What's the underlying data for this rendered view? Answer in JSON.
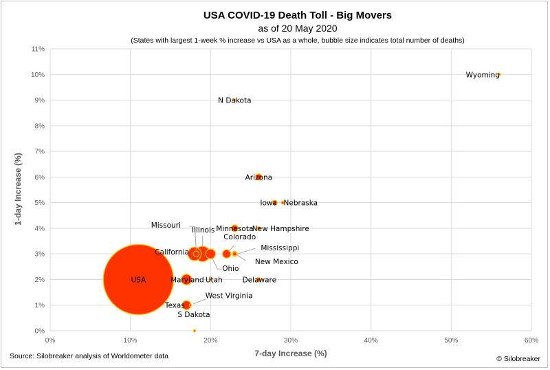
{
  "chart_data": {
    "type": "scatter",
    "title": "USA COVID-19 Death Toll - Big Movers",
    "subtitle": "as of 20 May 2020",
    "note": "(States with largest 1-week % increase vs USA as a whole, bubble size indicates total number of deaths)",
    "xlabel": "7-day Increase (%)",
    "ylabel": "1-day Increase (%)",
    "xlim": [
      0,
      60
    ],
    "ylim": [
      0,
      11
    ],
    "x_ticks": [
      0,
      10,
      20,
      30,
      40,
      50,
      60
    ],
    "y_ticks": [
      0,
      1,
      2,
      3,
      4,
      5,
      6,
      7,
      8,
      9,
      10,
      11
    ],
    "x_tick_labels": [
      "0%",
      "10%",
      "20%",
      "30%",
      "40%",
      "50%",
      "60%"
    ],
    "y_tick_labels": [
      "0%",
      "1%",
      "2%",
      "3%",
      "4%",
      "5%",
      "6%",
      "7%",
      "8%",
      "9%",
      "10%",
      "11%"
    ],
    "grid": true,
    "bubble_fill": "#ff3300",
    "bubble_stroke": "#ffc000",
    "points": [
      {
        "label": "USA",
        "x": 11,
        "y": 2,
        "size": 93000
      },
      {
        "label": "Maryland",
        "x": 17,
        "y": 2,
        "size": 2100
      },
      {
        "label": "Utah",
        "x": 20,
        "y": 2,
        "size": 90
      },
      {
        "label": "Delaware",
        "x": 26,
        "y": 2,
        "size": 300
      },
      {
        "label": "Texas",
        "x": 17,
        "y": 1,
        "size": 1500
      },
      {
        "label": "West Virginia",
        "x": 17.5,
        "y": 1,
        "size": 70
      },
      {
        "label": "S Dakota",
        "x": 18,
        "y": 0,
        "size": 50
      },
      {
        "label": "California",
        "x": 18,
        "y": 3,
        "size": 3400
      },
      {
        "label": "Missouri",
        "x": 18.2,
        "y": 3,
        "size": 600
      },
      {
        "label": "Illinois",
        "x": 19,
        "y": 3,
        "size": 4400
      },
      {
        "label": "Ohio",
        "x": 20,
        "y": 3,
        "size": 1800
      },
      {
        "label": "Colorado",
        "x": 22,
        "y": 3,
        "size": 1300
      },
      {
        "label": "Mississippi",
        "x": 23,
        "y": 3,
        "size": 500
      },
      {
        "label": "New Mexico",
        "x": 23,
        "y": 3,
        "size": 280
      },
      {
        "label": "Minnesota",
        "x": 23,
        "y": 4,
        "size": 800
      },
      {
        "label": "New Hampshire",
        "x": 26,
        "y": 4,
        "size": 180
      },
      {
        "label": "Iowa",
        "x": 28,
        "y": 5,
        "size": 400
      },
      {
        "label": "Nebraska",
        "x": 29,
        "y": 5,
        "size": 150
      },
      {
        "label": "Arizona",
        "x": 26,
        "y": 6,
        "size": 700
      },
      {
        "label": "N Dakota",
        "x": 23,
        "y": 9,
        "size": 50
      },
      {
        "label": "Wyoming",
        "x": 56,
        "y": 10,
        "size": 7
      }
    ]
  },
  "footer": {
    "source": "Source: Silobreaker analysis of Worldometer data",
    "copyright": "© Silobreaker"
  }
}
